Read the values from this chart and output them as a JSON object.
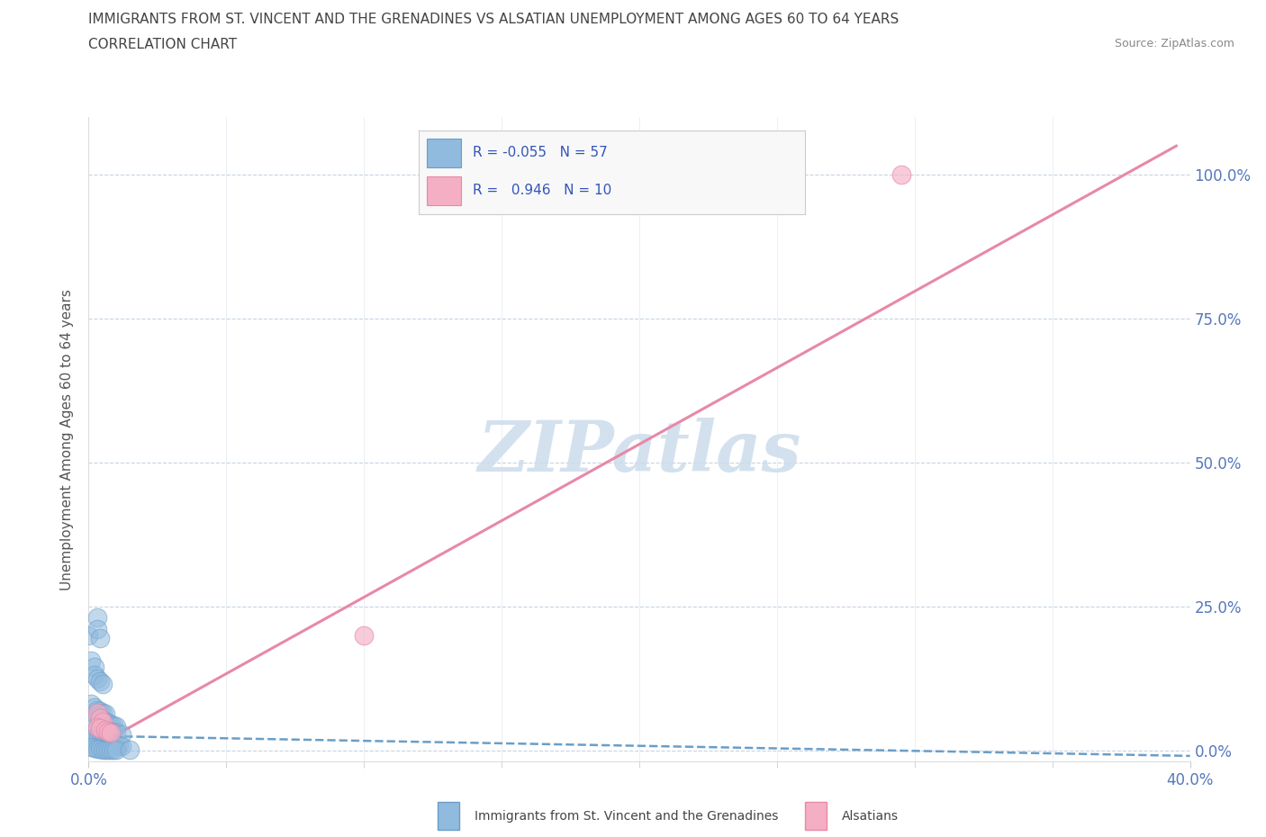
{
  "title_line1": "IMMIGRANTS FROM ST. VINCENT AND THE GRENADINES VS ALSATIAN UNEMPLOYMENT AMONG AGES 60 TO 64 YEARS",
  "title_line2": "CORRELATION CHART",
  "source_text": "Source: ZipAtlas.com",
  "ylabel_label": "Unemployment Among Ages 60 to 64 years",
  "blue_points": [
    [
      0.0,
      0.2
    ],
    [
      0.003,
      0.23
    ],
    [
      0.003,
      0.21
    ],
    [
      0.004,
      0.195
    ],
    [
      0.001,
      0.155
    ],
    [
      0.002,
      0.145
    ],
    [
      0.002,
      0.13
    ],
    [
      0.003,
      0.125
    ],
    [
      0.004,
      0.12
    ],
    [
      0.005,
      0.115
    ],
    [
      0.001,
      0.08
    ],
    [
      0.002,
      0.075
    ],
    [
      0.003,
      0.07
    ],
    [
      0.004,
      0.068
    ],
    [
      0.005,
      0.065
    ],
    [
      0.006,
      0.063
    ],
    [
      0.003,
      0.058
    ],
    [
      0.004,
      0.055
    ],
    [
      0.005,
      0.052
    ],
    [
      0.006,
      0.05
    ],
    [
      0.007,
      0.048
    ],
    [
      0.008,
      0.045
    ],
    [
      0.009,
      0.043
    ],
    [
      0.01,
      0.041
    ],
    [
      0.002,
      0.04
    ],
    [
      0.003,
      0.038
    ],
    [
      0.004,
      0.037
    ],
    [
      0.005,
      0.036
    ],
    [
      0.006,
      0.034
    ],
    [
      0.007,
      0.033
    ],
    [
      0.008,
      0.032
    ],
    [
      0.009,
      0.031
    ],
    [
      0.01,
      0.03
    ],
    [
      0.012,
      0.028
    ],
    [
      0.001,
      0.02
    ],
    [
      0.002,
      0.018
    ],
    [
      0.003,
      0.016
    ],
    [
      0.004,
      0.015
    ],
    [
      0.005,
      0.014
    ],
    [
      0.006,
      0.013
    ],
    [
      0.007,
      0.012
    ],
    [
      0.008,
      0.011
    ],
    [
      0.009,
      0.01
    ],
    [
      0.01,
      0.009
    ],
    [
      0.011,
      0.008
    ],
    [
      0.012,
      0.007
    ],
    [
      0.001,
      0.005
    ],
    [
      0.002,
      0.004
    ],
    [
      0.003,
      0.003
    ],
    [
      0.004,
      0.002
    ],
    [
      0.005,
      0.001
    ],
    [
      0.006,
      0.001
    ],
    [
      0.007,
      0.001
    ],
    [
      0.008,
      0.001
    ],
    [
      0.009,
      0.001
    ],
    [
      0.01,
      0.001
    ],
    [
      0.015,
      0.001
    ]
  ],
  "pink_points": [
    [
      0.003,
      0.065
    ],
    [
      0.004,
      0.055
    ],
    [
      0.005,
      0.05
    ],
    [
      0.003,
      0.04
    ],
    [
      0.004,
      0.038
    ],
    [
      0.006,
      0.035
    ],
    [
      0.007,
      0.032
    ],
    [
      0.008,
      0.03
    ],
    [
      0.1,
      0.2
    ],
    [
      0.295,
      1.0
    ]
  ],
  "blue_trend_x": [
    0.0,
    0.4
  ],
  "blue_trend_y": [
    0.025,
    -0.01
  ],
  "pink_trend_x": [
    0.0,
    0.395
  ],
  "pink_trend_y": [
    0.0,
    1.05
  ],
  "xlim": [
    0.0,
    0.4
  ],
  "ylim": [
    -0.02,
    1.1
  ],
  "ytick_vals": [
    0.0,
    0.25,
    0.5,
    0.75,
    1.0
  ],
  "ytick_labels": [
    "0.0%",
    "25.0%",
    "50.0%",
    "75.0%",
    "100.0%"
  ],
  "xtick_major": [
    0.0,
    0.4
  ],
  "xtick_minor": [
    0.05,
    0.1,
    0.15,
    0.2,
    0.25,
    0.3,
    0.35
  ],
  "xtick_major_labels": [
    "0.0%",
    "40.0%"
  ],
  "blue_scatter_color": "#90bade",
  "blue_scatter_edge": "#6a9ec8",
  "pink_scatter_color": "#f4afc4",
  "pink_scatter_edge": "#e888a8",
  "blue_trend_color": "#6a9ec8",
  "pink_trend_color": "#e888a8",
  "watermark_color": "#ccdcec",
  "grid_color": "#c8d4e4",
  "axis_tick_color": "#5577bb",
  "ylabel_color": "#555555",
  "title_color": "#444444",
  "source_color": "#888888",
  "background_color": "#ffffff",
  "legend_box_color": "#f8f8f8",
  "legend_box_edge": "#cccccc",
  "legend_text_color": "#3355bb"
}
